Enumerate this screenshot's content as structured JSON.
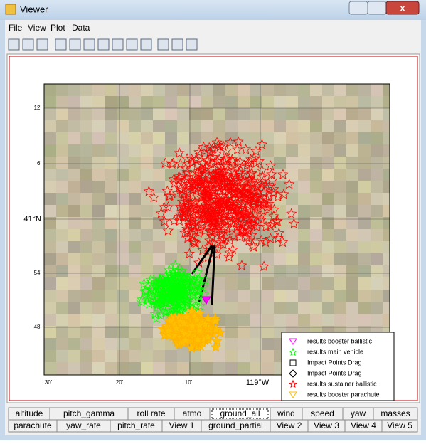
{
  "window": {
    "title": "Viewer"
  },
  "menu": [
    "File",
    "View",
    "Plot",
    "Data"
  ],
  "plot": {
    "y_labels": [
      "12'",
      "6'",
      "41°N",
      "54'",
      "48'"
    ],
    "x_labels": [
      "30'",
      "20'",
      "10'",
      "119°W"
    ],
    "legend": [
      "results booster ballistic",
      "results main vehicle",
      "Impact Points Drag",
      "Impact Points Drag",
      "results sustainer ballistic",
      "results booster parachute"
    ]
  },
  "tabs": {
    "row1": [
      "altitude",
      "pitch_gamma",
      "roll rate",
      "atmo",
      "ground_all",
      "wind",
      "speed",
      "yaw",
      "masses"
    ],
    "row2": [
      "parachute",
      "yaw_rate",
      "pitch_rate",
      "View 1",
      "ground_partial",
      "View 2",
      "View 3",
      "View 4",
      "View 5"
    ]
  }
}
